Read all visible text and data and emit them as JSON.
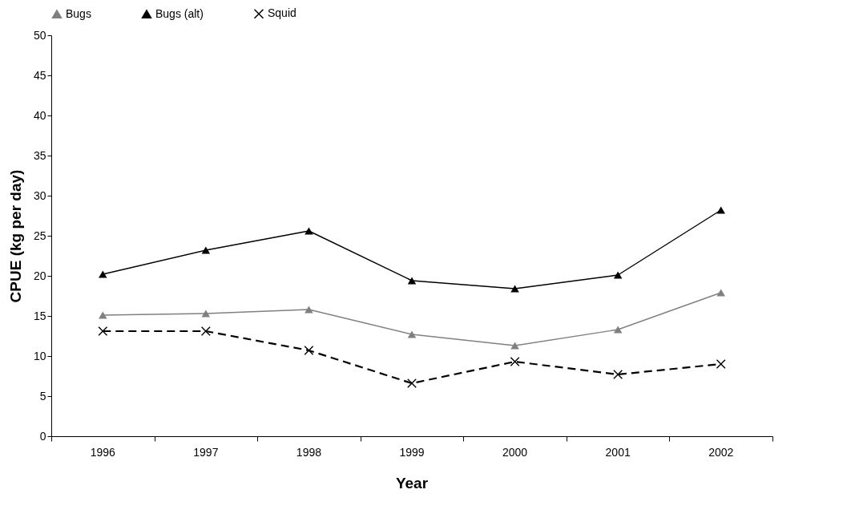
{
  "chart_data": {
    "type": "line",
    "xlabel": "Year",
    "ylabel": "CPUE (kg per day)",
    "categories": [
      "1996",
      "1997",
      "1998",
      "1999",
      "2000",
      "2001",
      "2002"
    ],
    "ylim": [
      0,
      50
    ],
    "yticks": [
      0,
      5,
      10,
      15,
      20,
      25,
      30,
      35,
      40,
      45,
      50
    ],
    "grid": false,
    "legend": "top",
    "series": [
      {
        "name": "Bugs",
        "color": "#808080",
        "marker": "triangle",
        "line_style": "solid",
        "values": [
          15.1,
          15.3,
          15.8,
          12.7,
          11.3,
          13.3,
          17.9
        ]
      },
      {
        "name": "Bugs (alt)",
        "color": "#000000",
        "marker": "triangle",
        "line_style": "solid",
        "values": [
          20.2,
          23.2,
          25.6,
          19.4,
          18.4,
          20.1,
          28.2
        ]
      },
      {
        "name": "Squid",
        "color": "#000000",
        "marker": "cross",
        "line_style": "dashed",
        "values": [
          13.1,
          13.1,
          10.7,
          6.6,
          9.3,
          7.7,
          9.0
        ]
      }
    ]
  }
}
